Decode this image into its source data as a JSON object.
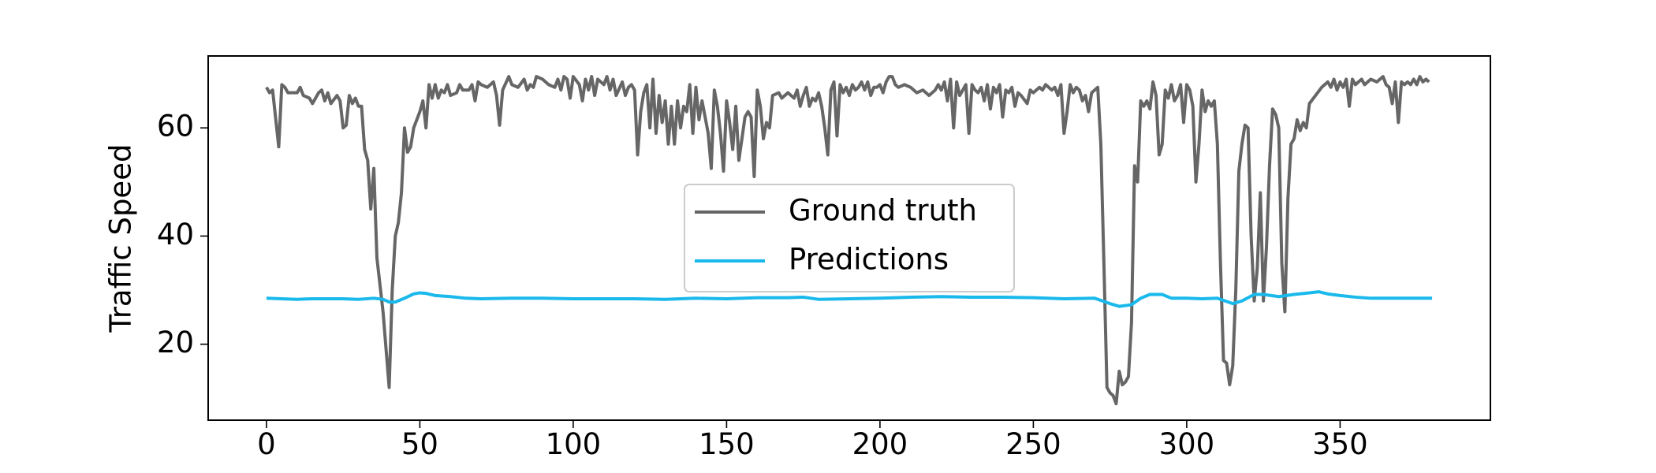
{
  "chart_data": {
    "type": "line",
    "ylabel": "Traffic Speed",
    "xlim": [
      -19,
      399
    ],
    "ylim": [
      5.95,
      73.3
    ],
    "xticks": [
      0,
      50,
      100,
      150,
      200,
      250,
      300,
      350
    ],
    "yticks": [
      20,
      40,
      60
    ],
    "legend": "center",
    "series": [
      {
        "name": "Ground truth",
        "color": "#666666",
        "x": [
          0,
          1,
          2,
          4,
          5,
          6,
          7,
          10,
          11,
          12,
          14,
          15,
          17,
          18,
          19,
          20,
          21,
          23,
          24,
          25,
          26,
          27,
          28,
          29,
          30,
          31,
          32,
          33,
          34,
          35,
          36,
          38,
          40,
          41,
          42,
          43,
          44,
          45,
          46,
          47,
          48,
          50,
          51,
          52,
          53,
          54,
          55,
          56,
          57,
          58,
          59,
          60,
          62,
          63,
          64,
          66,
          67,
          68,
          69,
          70,
          72,
          74,
          75,
          76,
          77,
          79,
          80,
          82,
          84,
          85,
          86,
          87,
          88,
          90,
          92,
          94,
          95,
          96,
          97,
          98,
          99,
          100,
          102,
          103,
          104,
          105,
          106,
          107,
          108,
          110,
          111,
          112,
          113,
          114,
          116,
          117,
          118,
          119,
          120,
          121,
          122,
          123,
          124,
          125,
          126,
          127,
          128,
          129,
          130,
          131,
          132,
          133,
          134,
          135,
          136,
          137,
          138,
          139,
          140,
          141,
          142,
          143,
          144,
          145,
          146,
          147,
          148,
          149,
          150,
          151,
          152,
          153,
          154,
          155,
          156,
          157,
          158,
          159,
          160,
          161,
          162,
          163,
          164,
          165,
          167,
          168,
          170,
          172,
          173,
          174,
          175,
          176,
          177,
          178,
          179,
          180,
          181,
          182,
          183,
          184,
          185,
          186,
          187,
          188,
          189,
          190,
          191,
          192,
          193,
          194,
          195,
          196,
          197,
          198,
          199,
          200,
          201,
          202,
          203,
          204,
          205,
          206,
          208,
          210,
          212,
          214,
          215,
          216,
          218,
          219,
          220,
          221,
          222,
          223,
          224,
          225,
          226,
          227,
          228,
          229,
          230,
          231,
          232,
          233,
          234,
          235,
          236,
          237,
          238,
          239,
          240,
          241,
          242,
          243,
          244,
          245,
          246,
          248,
          249,
          250,
          252,
          253,
          254,
          255,
          256,
          257,
          258,
          259,
          260,
          261,
          262,
          263,
          264,
          265,
          266,
          267,
          268,
          269,
          270,
          271,
          272,
          273,
          274,
          275,
          276,
          277,
          278,
          279,
          280,
          281,
          282,
          283,
          284,
          285,
          286,
          287,
          288,
          289,
          290,
          291,
          292,
          293,
          294,
          295,
          296,
          297,
          298,
          299,
          300,
          301,
          302,
          303,
          304,
          305,
          306,
          307,
          308,
          309,
          310,
          311,
          312,
          313,
          314,
          315,
          316,
          317,
          318,
          319,
          320,
          321,
          322,
          323,
          324,
          325,
          326,
          327,
          328,
          329,
          330,
          331,
          332,
          333,
          334,
          335,
          336,
          337,
          338,
          339,
          340,
          342,
          344,
          346,
          347,
          348,
          349,
          350,
          351,
          352,
          353,
          354,
          355,
          356,
          357,
          358,
          360,
          362,
          364,
          365,
          366,
          367,
          368,
          369,
          370,
          371,
          372,
          373,
          374,
          375,
          376,
          377,
          378,
          379
        ],
        "values": [
          67.5,
          66.5,
          67,
          56.5,
          68,
          67.5,
          66.5,
          66.5,
          67.5,
          66,
          65.5,
          64.5,
          66.5,
          67,
          65,
          66.5,
          64.5,
          66,
          65,
          60,
          60.5,
          66,
          64.5,
          65.5,
          64,
          64,
          56,
          54,
          45,
          52.5,
          36,
          26,
          12,
          30,
          40,
          42.5,
          48,
          60,
          55.5,
          56.5,
          60,
          63,
          65,
          60,
          68,
          65.5,
          68,
          65.5,
          67,
          66.5,
          68,
          66,
          66.5,
          68,
          67,
          67,
          68,
          65,
          68.5,
          68,
          67.5,
          68.5,
          66,
          60.5,
          67,
          69.5,
          68,
          67.5,
          69,
          67,
          68,
          67.5,
          69.5,
          69,
          68,
          67.5,
          69,
          67,
          69.5,
          69,
          65.5,
          69.5,
          68,
          65,
          69,
          67,
          69.5,
          66,
          69,
          68,
          69.5,
          67,
          69,
          66,
          68.5,
          66,
          67.5,
          68,
          67,
          55,
          63,
          66.5,
          68,
          60,
          69,
          59,
          66,
          61,
          65,
          57,
          64,
          57,
          65,
          60,
          64,
          63,
          68,
          59,
          67.5,
          61.5,
          65,
          62,
          59,
          52.5,
          67,
          64,
          59,
          52,
          65,
          61,
          56,
          64,
          54,
          58,
          62,
          63,
          62,
          51,
          67,
          64,
          58,
          61,
          60,
          66,
          66.5,
          65.5,
          66.5,
          65.5,
          67,
          64,
          66,
          67.5,
          64,
          65.5,
          65,
          66.5,
          64,
          60,
          55,
          67,
          68.5,
          58.5,
          68,
          66.5,
          67.5,
          66,
          68,
          67,
          67.5,
          68.5,
          67,
          68.5,
          66,
          67.5,
          67.5,
          68,
          66.5,
          68.5,
          69.5,
          69.5,
          68,
          67.5,
          68,
          67.5,
          66.5,
          67,
          66.5,
          66,
          67,
          68,
          67,
          68.5,
          65,
          69,
          60,
          68.5,
          66,
          67,
          68,
          59,
          68,
          67,
          66.5,
          67.5,
          65,
          68,
          63.5,
          67.5,
          66.5,
          68,
          62,
          67,
          66.5,
          67.5,
          64,
          66.5,
          66,
          64.5,
          67,
          66.5,
          67.5,
          67,
          68,
          67.5,
          67,
          67.5,
          66,
          68,
          59,
          63,
          68,
          66.5,
          67.5,
          67,
          65,
          66,
          63,
          66.5,
          67,
          67.5,
          57,
          35,
          12,
          11,
          10.5,
          9,
          15,
          12.5,
          13,
          14,
          24,
          53,
          50,
          65,
          64,
          65,
          63.5,
          68.5,
          66,
          55,
          57,
          67,
          65.5,
          68,
          65,
          66,
          68,
          61,
          68,
          67,
          64,
          50,
          57,
          67,
          63,
          65,
          64,
          65,
          57,
          35,
          17,
          16.5,
          12.5,
          16,
          30,
          52,
          57,
          60.5,
          60,
          40,
          28,
          34,
          48,
          28,
          38,
          53,
          63.5,
          62.5,
          60,
          35,
          26,
          47,
          57,
          58,
          61.5,
          59.5,
          61,
          60,
          64.5,
          66,
          67.5,
          68.5,
          67.5,
          69,
          67,
          68.5,
          67.5,
          69,
          64,
          69,
          68,
          68.5,
          69,
          68,
          69,
          68.5,
          69.5,
          68,
          67.5,
          64.5,
          68.5,
          61,
          68.5,
          68,
          68.5,
          68,
          69,
          68,
          69.5,
          68.5,
          69,
          68.5
        ]
      },
      {
        "name": "Predictions",
        "color": "#1ab9ec",
        "x": [
          0,
          5,
          10,
          15,
          20,
          25,
          30,
          35,
          38,
          40,
          42,
          45,
          48,
          50,
          52,
          55,
          60,
          65,
          70,
          80,
          90,
          100,
          110,
          120,
          130,
          140,
          150,
          160,
          170,
          175,
          180,
          190,
          200,
          210,
          220,
          230,
          240,
          250,
          260,
          270,
          275,
          278,
          282,
          285,
          288,
          292,
          295,
          300,
          305,
          310,
          315,
          318,
          322,
          325,
          330,
          335,
          340,
          343,
          346,
          350,
          355,
          360,
          370,
          380
        ],
        "values": [
          28.5,
          28.4,
          28.3,
          28.4,
          28.4,
          28.4,
          28.3,
          28.5,
          28.3,
          27.8,
          27.8,
          28.5,
          29.3,
          29.5,
          29.4,
          29,
          28.8,
          28.5,
          28.4,
          28.5,
          28.5,
          28.4,
          28.4,
          28.4,
          28.3,
          28.5,
          28.4,
          28.6,
          28.6,
          28.7,
          28.3,
          28.4,
          28.5,
          28.7,
          28.8,
          28.7,
          28.7,
          28.6,
          28.4,
          28.5,
          27.5,
          27,
          27.3,
          28.5,
          29.2,
          29.2,
          28.5,
          28.5,
          28.4,
          28.5,
          27.5,
          28,
          29.2,
          29.2,
          28.8,
          29.2,
          29.5,
          29.7,
          29.3,
          29,
          28.7,
          28.5,
          28.5,
          28.5
        ]
      }
    ]
  }
}
